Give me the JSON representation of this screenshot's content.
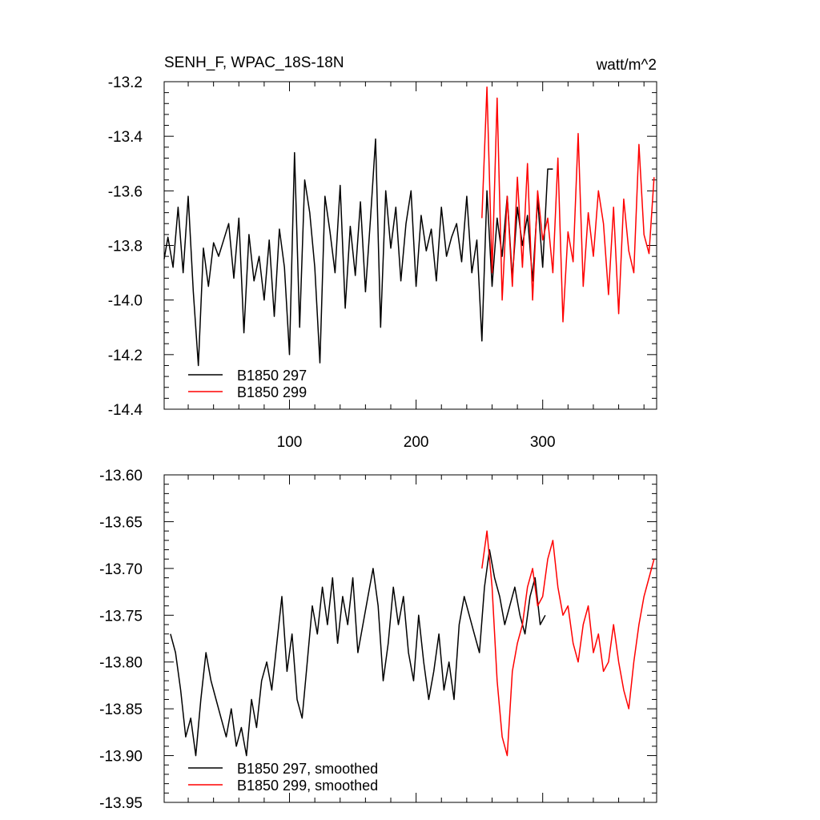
{
  "header": {
    "title": "SENH_F, WPAC_18S-18N",
    "units": "watt/m^2"
  },
  "chart_data": [
    {
      "type": "line",
      "title": "SENH_F, WPAC_18S-18N",
      "units": "watt/m^2",
      "xlim": [
        1,
        390
      ],
      "ylim": [
        -14.4,
        -13.2
      ],
      "x_ticks": [
        100,
        200,
        300
      ],
      "x_tick_labels": [
        "100",
        "200",
        "300"
      ],
      "y_ticks": [
        -14.4,
        -14.2,
        -14.0,
        -13.8,
        -13.6,
        -13.4,
        -13.2
      ],
      "y_tick_labels": [
        "-14.4",
        "-14.2",
        "-14.0",
        "-13.8",
        "-13.6",
        "-13.4",
        "-13.2"
      ],
      "legend": {
        "placement": "bottom-left"
      },
      "series": [
        {
          "name": "B1850 297",
          "color": "#000000",
          "x": [
            1,
            4,
            8,
            12,
            16,
            20,
            24,
            28,
            32,
            36,
            40,
            44,
            48,
            52,
            56,
            60,
            64,
            68,
            72,
            76,
            80,
            84,
            88,
            92,
            96,
            100,
            104,
            108,
            112,
            116,
            120,
            124,
            128,
            132,
            136,
            140,
            144,
            148,
            152,
            156,
            160,
            164,
            168,
            172,
            176,
            180,
            184,
            188,
            192,
            196,
            200,
            204,
            208,
            212,
            216,
            220,
            224,
            228,
            232,
            236,
            240,
            244,
            248,
            252,
            256,
            260,
            264,
            268,
            272,
            276,
            280,
            284,
            288,
            292,
            296,
            300,
            304,
            308
          ],
          "values": [
            -13.85,
            -13.77,
            -13.88,
            -13.66,
            -13.9,
            -13.62,
            -13.97,
            -14.24,
            -13.81,
            -13.95,
            -13.79,
            -13.84,
            -13.78,
            -13.72,
            -13.92,
            -13.7,
            -14.12,
            -13.76,
            -13.93,
            -13.84,
            -14.0,
            -13.78,
            -14.06,
            -13.74,
            -13.88,
            -14.2,
            -13.46,
            -14.1,
            -13.56,
            -13.68,
            -13.88,
            -14.23,
            -13.62,
            -13.75,
            -13.9,
            -13.58,
            -14.03,
            -13.73,
            -13.91,
            -13.64,
            -13.97,
            -13.7,
            -13.41,
            -14.1,
            -13.6,
            -13.81,
            -13.66,
            -13.93,
            -13.72,
            -13.6,
            -13.95,
            -13.69,
            -13.82,
            -13.74,
            -13.93,
            -13.66,
            -13.84,
            -13.77,
            -13.72,
            -13.86,
            -13.62,
            -13.9,
            -13.78,
            -14.15,
            -13.6,
            -13.95,
            -13.7,
            -13.84,
            -13.62,
            -13.92,
            -13.66,
            -13.8,
            -13.69,
            -13.93,
            -13.63,
            -13.88,
            -13.52,
            -13.52
          ]
        },
        {
          "name": "B1850 299",
          "color": "#ff0000",
          "x": [
            252,
            256,
            260,
            264,
            268,
            272,
            276,
            280,
            284,
            288,
            292,
            296,
            300,
            304,
            308,
            312,
            316,
            320,
            324,
            328,
            332,
            336,
            340,
            344,
            348,
            352,
            356,
            360,
            364,
            368,
            372,
            376,
            380,
            384,
            388
          ],
          "values": [
            -13.7,
            -13.22,
            -13.9,
            -13.26,
            -14.0,
            -13.62,
            -13.95,
            -13.55,
            -13.88,
            -13.5,
            -14.0,
            -13.6,
            -13.78,
            -13.7,
            -13.9,
            -13.48,
            -14.08,
            -13.75,
            -13.86,
            -13.39,
            -13.95,
            -13.68,
            -13.84,
            -13.6,
            -13.72,
            -13.98,
            -13.66,
            -14.05,
            -13.63,
            -13.82,
            -13.9,
            -13.43,
            -13.76,
            -13.83,
            -13.55
          ]
        }
      ]
    },
    {
      "type": "line",
      "xlim": [
        1,
        390
      ],
      "ylim": [
        -13.95,
        -13.6
      ],
      "x_ticks": [
        100,
        200,
        300
      ],
      "x_tick_labels": [
        "",
        "",
        ""
      ],
      "y_ticks": [
        -13.95,
        -13.9,
        -13.85,
        -13.8,
        -13.75,
        -13.7,
        -13.65,
        -13.6
      ],
      "y_tick_labels": [
        "-13.95",
        "-13.90",
        "-13.85",
        "-13.80",
        "-13.75",
        "-13.70",
        "-13.65",
        "-13.60"
      ],
      "legend": {
        "placement": "bottom-left"
      },
      "series": [
        {
          "name": "B1850 297, smoothed",
          "color": "#000000",
          "x": [
            6,
            10,
            14,
            18,
            22,
            26,
            30,
            34,
            38,
            42,
            46,
            50,
            54,
            58,
            62,
            66,
            70,
            74,
            78,
            82,
            86,
            90,
            94,
            98,
            102,
            106,
            110,
            114,
            118,
            122,
            126,
            130,
            134,
            138,
            142,
            146,
            150,
            154,
            158,
            162,
            166,
            170,
            174,
            178,
            182,
            186,
            190,
            194,
            198,
            202,
            206,
            210,
            214,
            218,
            222,
            226,
            230,
            234,
            238,
            242,
            246,
            250,
            254,
            258,
            262,
            266,
            270,
            274,
            278,
            282,
            286,
            290,
            294,
            298,
            302
          ],
          "values": [
            -13.77,
            -13.79,
            -13.83,
            -13.88,
            -13.86,
            -13.9,
            -13.84,
            -13.79,
            -13.82,
            -13.84,
            -13.86,
            -13.88,
            -13.85,
            -13.89,
            -13.87,
            -13.9,
            -13.84,
            -13.87,
            -13.82,
            -13.8,
            -13.83,
            -13.78,
            -13.73,
            -13.81,
            -13.77,
            -13.84,
            -13.86,
            -13.8,
            -13.74,
            -13.77,
            -13.72,
            -13.76,
            -13.71,
            -13.78,
            -13.73,
            -13.76,
            -13.71,
            -13.79,
            -13.76,
            -13.73,
            -13.7,
            -13.74,
            -13.82,
            -13.78,
            -13.72,
            -13.76,
            -13.73,
            -13.79,
            -13.82,
            -13.75,
            -13.8,
            -13.84,
            -13.81,
            -13.77,
            -13.83,
            -13.8,
            -13.84,
            -13.76,
            -13.73,
            -13.75,
            -13.77,
            -13.79,
            -13.72,
            -13.68,
            -13.71,
            -13.73,
            -13.76,
            -13.74,
            -13.72,
            -13.75,
            -13.77,
            -13.73,
            -13.71,
            -13.76,
            -13.75
          ]
        },
        {
          "name": "B1850 299, smoothed",
          "color": "#ff0000",
          "x": [
            252,
            256,
            260,
            264,
            268,
            272,
            276,
            280,
            284,
            288,
            292,
            296,
            300,
            304,
            308,
            312,
            316,
            320,
            324,
            328,
            332,
            336,
            340,
            344,
            348,
            352,
            356,
            360,
            364,
            368,
            372,
            376,
            380,
            384,
            388
          ],
          "values": [
            -13.7,
            -13.66,
            -13.72,
            -13.82,
            -13.88,
            -13.9,
            -13.81,
            -13.78,
            -13.76,
            -13.72,
            -13.7,
            -13.74,
            -13.73,
            -13.69,
            -13.67,
            -13.72,
            -13.75,
            -13.74,
            -13.78,
            -13.8,
            -13.76,
            -13.74,
            -13.79,
            -13.77,
            -13.81,
            -13.8,
            -13.76,
            -13.8,
            -13.83,
            -13.85,
            -13.8,
            -13.76,
            -13.73,
            -13.71,
            -13.69
          ]
        }
      ]
    }
  ]
}
